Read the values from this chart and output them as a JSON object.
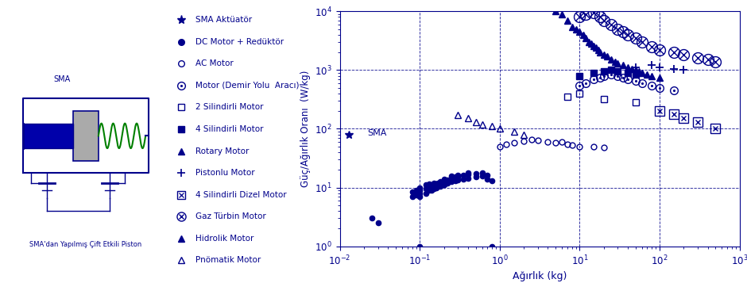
{
  "xlabel": "Ağırlık (kg)",
  "ylabel": "Güç/Ağırlık Oranı  (W/kg)",
  "xlim": [
    0.01,
    1000
  ],
  "ylim": [
    1,
    10000
  ],
  "color": "#00008B",
  "background": "#ffffff",
  "sma_data": [
    [
      0.013,
      80
    ]
  ],
  "dc_motor_data": [
    [
      0.025,
      3.0
    ],
    [
      0.03,
      2.5
    ],
    [
      0.08,
      7.0
    ],
    [
      0.08,
      8.5
    ],
    [
      0.09,
      7.5
    ],
    [
      0.09,
      8.0
    ],
    [
      0.09,
      9.0
    ],
    [
      0.1,
      7.0
    ],
    [
      0.1,
      8.0
    ],
    [
      0.1,
      9.0
    ],
    [
      0.1,
      10.0
    ],
    [
      0.12,
      8.0
    ],
    [
      0.12,
      9.5
    ],
    [
      0.12,
      11.0
    ],
    [
      0.13,
      9.0
    ],
    [
      0.13,
      10.0
    ],
    [
      0.13,
      11.5
    ],
    [
      0.14,
      9.0
    ],
    [
      0.14,
      10.5
    ],
    [
      0.15,
      9.5
    ],
    [
      0.15,
      11.0
    ],
    [
      0.15,
      12.0
    ],
    [
      0.16,
      10.0
    ],
    [
      0.16,
      11.5
    ],
    [
      0.17,
      11.0
    ],
    [
      0.17,
      12.0
    ],
    [
      0.18,
      10.5
    ],
    [
      0.18,
      12.5
    ],
    [
      0.2,
      11.0
    ],
    [
      0.2,
      12.0
    ],
    [
      0.2,
      13.0
    ],
    [
      0.2,
      14.0
    ],
    [
      0.22,
      12.0
    ],
    [
      0.22,
      13.5
    ],
    [
      0.25,
      12.5
    ],
    [
      0.25,
      14.0
    ],
    [
      0.25,
      15.5
    ],
    [
      0.28,
      13.0
    ],
    [
      0.28,
      15.0
    ],
    [
      0.3,
      13.5
    ],
    [
      0.3,
      15.0
    ],
    [
      0.3,
      16.0
    ],
    [
      0.35,
      14.0
    ],
    [
      0.35,
      16.0
    ],
    [
      0.4,
      14.5
    ],
    [
      0.4,
      16.5
    ],
    [
      0.4,
      18.0
    ],
    [
      0.5,
      15.0
    ],
    [
      0.5,
      17.0
    ],
    [
      0.6,
      15.5
    ],
    [
      0.6,
      18.0
    ],
    [
      0.7,
      14.0
    ],
    [
      0.7,
      16.0
    ],
    [
      0.8,
      13.0
    ],
    [
      0.8,
      1.0
    ],
    [
      0.1,
      1.0
    ]
  ],
  "ac_motor_data": [
    [
      1.0,
      50
    ],
    [
      1.2,
      55
    ],
    [
      1.5,
      58
    ],
    [
      2.0,
      62
    ],
    [
      2.5,
      65
    ],
    [
      3.0,
      63
    ],
    [
      4.0,
      60
    ],
    [
      5.0,
      58
    ],
    [
      6.0,
      60
    ],
    [
      7.0,
      55
    ],
    [
      8.0,
      52
    ],
    [
      10.0,
      50
    ],
    [
      15.0,
      50
    ],
    [
      20.0,
      48
    ]
  ],
  "railway_motor_data": [
    [
      10.0,
      550
    ],
    [
      12.0,
      600
    ],
    [
      15.0,
      700
    ],
    [
      18.0,
      750
    ],
    [
      20.0,
      800
    ],
    [
      25.0,
      850
    ],
    [
      30.0,
      800
    ],
    [
      35.0,
      750
    ],
    [
      40.0,
      700
    ],
    [
      50.0,
      650
    ],
    [
      60.0,
      600
    ],
    [
      80.0,
      550
    ],
    [
      100.0,
      500
    ],
    [
      150.0,
      450
    ]
  ],
  "cylinder2_data": [
    [
      7.0,
      350
    ],
    [
      10.0,
      400
    ],
    [
      20.0,
      320
    ],
    [
      50.0,
      280
    ]
  ],
  "cylinder4_data": [
    [
      10.0,
      800
    ],
    [
      15.0,
      900
    ],
    [
      20.0,
      950
    ],
    [
      25.0,
      1000
    ],
    [
      30.0,
      950
    ],
    [
      40.0,
      900
    ],
    [
      50.0,
      850
    ]
  ],
  "piston_motor_data": [
    [
      50.0,
      1100
    ],
    [
      80.0,
      1200
    ],
    [
      100.0,
      1100
    ],
    [
      150.0,
      1050
    ],
    [
      200.0,
      1000
    ]
  ],
  "diesel4_data": [
    [
      100.0,
      200
    ],
    [
      150.0,
      175
    ],
    [
      200.0,
      150
    ],
    [
      300.0,
      130
    ],
    [
      500.0,
      100
    ]
  ],
  "gas_turbine_data": [
    [
      10.0,
      8000
    ],
    [
      12.0,
      9000
    ],
    [
      15.0,
      9500
    ],
    [
      18.0,
      8000
    ],
    [
      20.0,
      7000
    ],
    [
      25.0,
      6000
    ],
    [
      30.0,
      5000
    ],
    [
      35.0,
      4500
    ],
    [
      40.0,
      4000
    ],
    [
      50.0,
      3500
    ],
    [
      60.0,
      3000
    ],
    [
      80.0,
      2500
    ],
    [
      100.0,
      2200
    ],
    [
      150.0,
      2000
    ],
    [
      200.0,
      1800
    ],
    [
      300.0,
      1600
    ],
    [
      400.0,
      1500
    ],
    [
      500.0,
      1400
    ]
  ],
  "hydraulic_motor_data": [
    [
      5.0,
      10000
    ],
    [
      6.0,
      9000
    ],
    [
      7.0,
      7000
    ],
    [
      8.0,
      5500
    ],
    [
      9.0,
      5000
    ],
    [
      10.0,
      4500
    ],
    [
      11.0,
      4000
    ],
    [
      12.0,
      3500
    ],
    [
      13.0,
      3000
    ],
    [
      14.0,
      2800
    ],
    [
      15.0,
      2600
    ],
    [
      16.0,
      2400
    ],
    [
      17.0,
      2200
    ],
    [
      18.0,
      2000
    ],
    [
      20.0,
      1800
    ],
    [
      22.0,
      1700
    ],
    [
      25.0,
      1500
    ],
    [
      28.0,
      1400
    ],
    [
      30.0,
      1300
    ],
    [
      35.0,
      1200
    ],
    [
      40.0,
      1100
    ],
    [
      45.0,
      1050
    ],
    [
      50.0,
      1000
    ],
    [
      55.0,
      950
    ],
    [
      60.0,
      900
    ],
    [
      70.0,
      850
    ],
    [
      80.0,
      800
    ],
    [
      100.0,
      750
    ]
  ],
  "pneumatic_motor_data": [
    [
      0.3,
      170
    ],
    [
      0.4,
      150
    ],
    [
      0.5,
      130
    ],
    [
      0.6,
      120
    ],
    [
      0.8,
      110
    ],
    [
      1.0,
      100
    ],
    [
      1.5,
      90
    ],
    [
      2.0,
      80
    ]
  ],
  "legend_items": [
    {
      "marker": "star",
      "filled": true,
      "label": "SMA Aktüatör"
    },
    {
      "marker": "circle",
      "filled": true,
      "label": "DC Motor + Redüktör"
    },
    {
      "marker": "circle",
      "filled": false,
      "label": "AC Motor"
    },
    {
      "marker": "odot",
      "filled": false,
      "label": "Motor (Demir Yolu  Aracı)"
    },
    {
      "marker": "square",
      "filled": false,
      "label": "2 Silindirli Motor"
    },
    {
      "marker": "square",
      "filled": true,
      "label": "4 Silindirli Motor"
    },
    {
      "marker": "tri_up",
      "filled": true,
      "label": "Rotary Motor"
    },
    {
      "marker": "plus",
      "filled": true,
      "label": "Pistonlu Motor"
    },
    {
      "marker": "boxtimes",
      "filled": false,
      "label": "4 Silindirli Dizel Motor"
    },
    {
      "marker": "otimes",
      "filled": false,
      "label": "Gaz Türbin Motor"
    },
    {
      "marker": "tri_up",
      "filled": true,
      "label": "Hidrolik Motor"
    },
    {
      "marker": "tri_up",
      "filled": false,
      "label": "Pnömatik Motor"
    }
  ]
}
